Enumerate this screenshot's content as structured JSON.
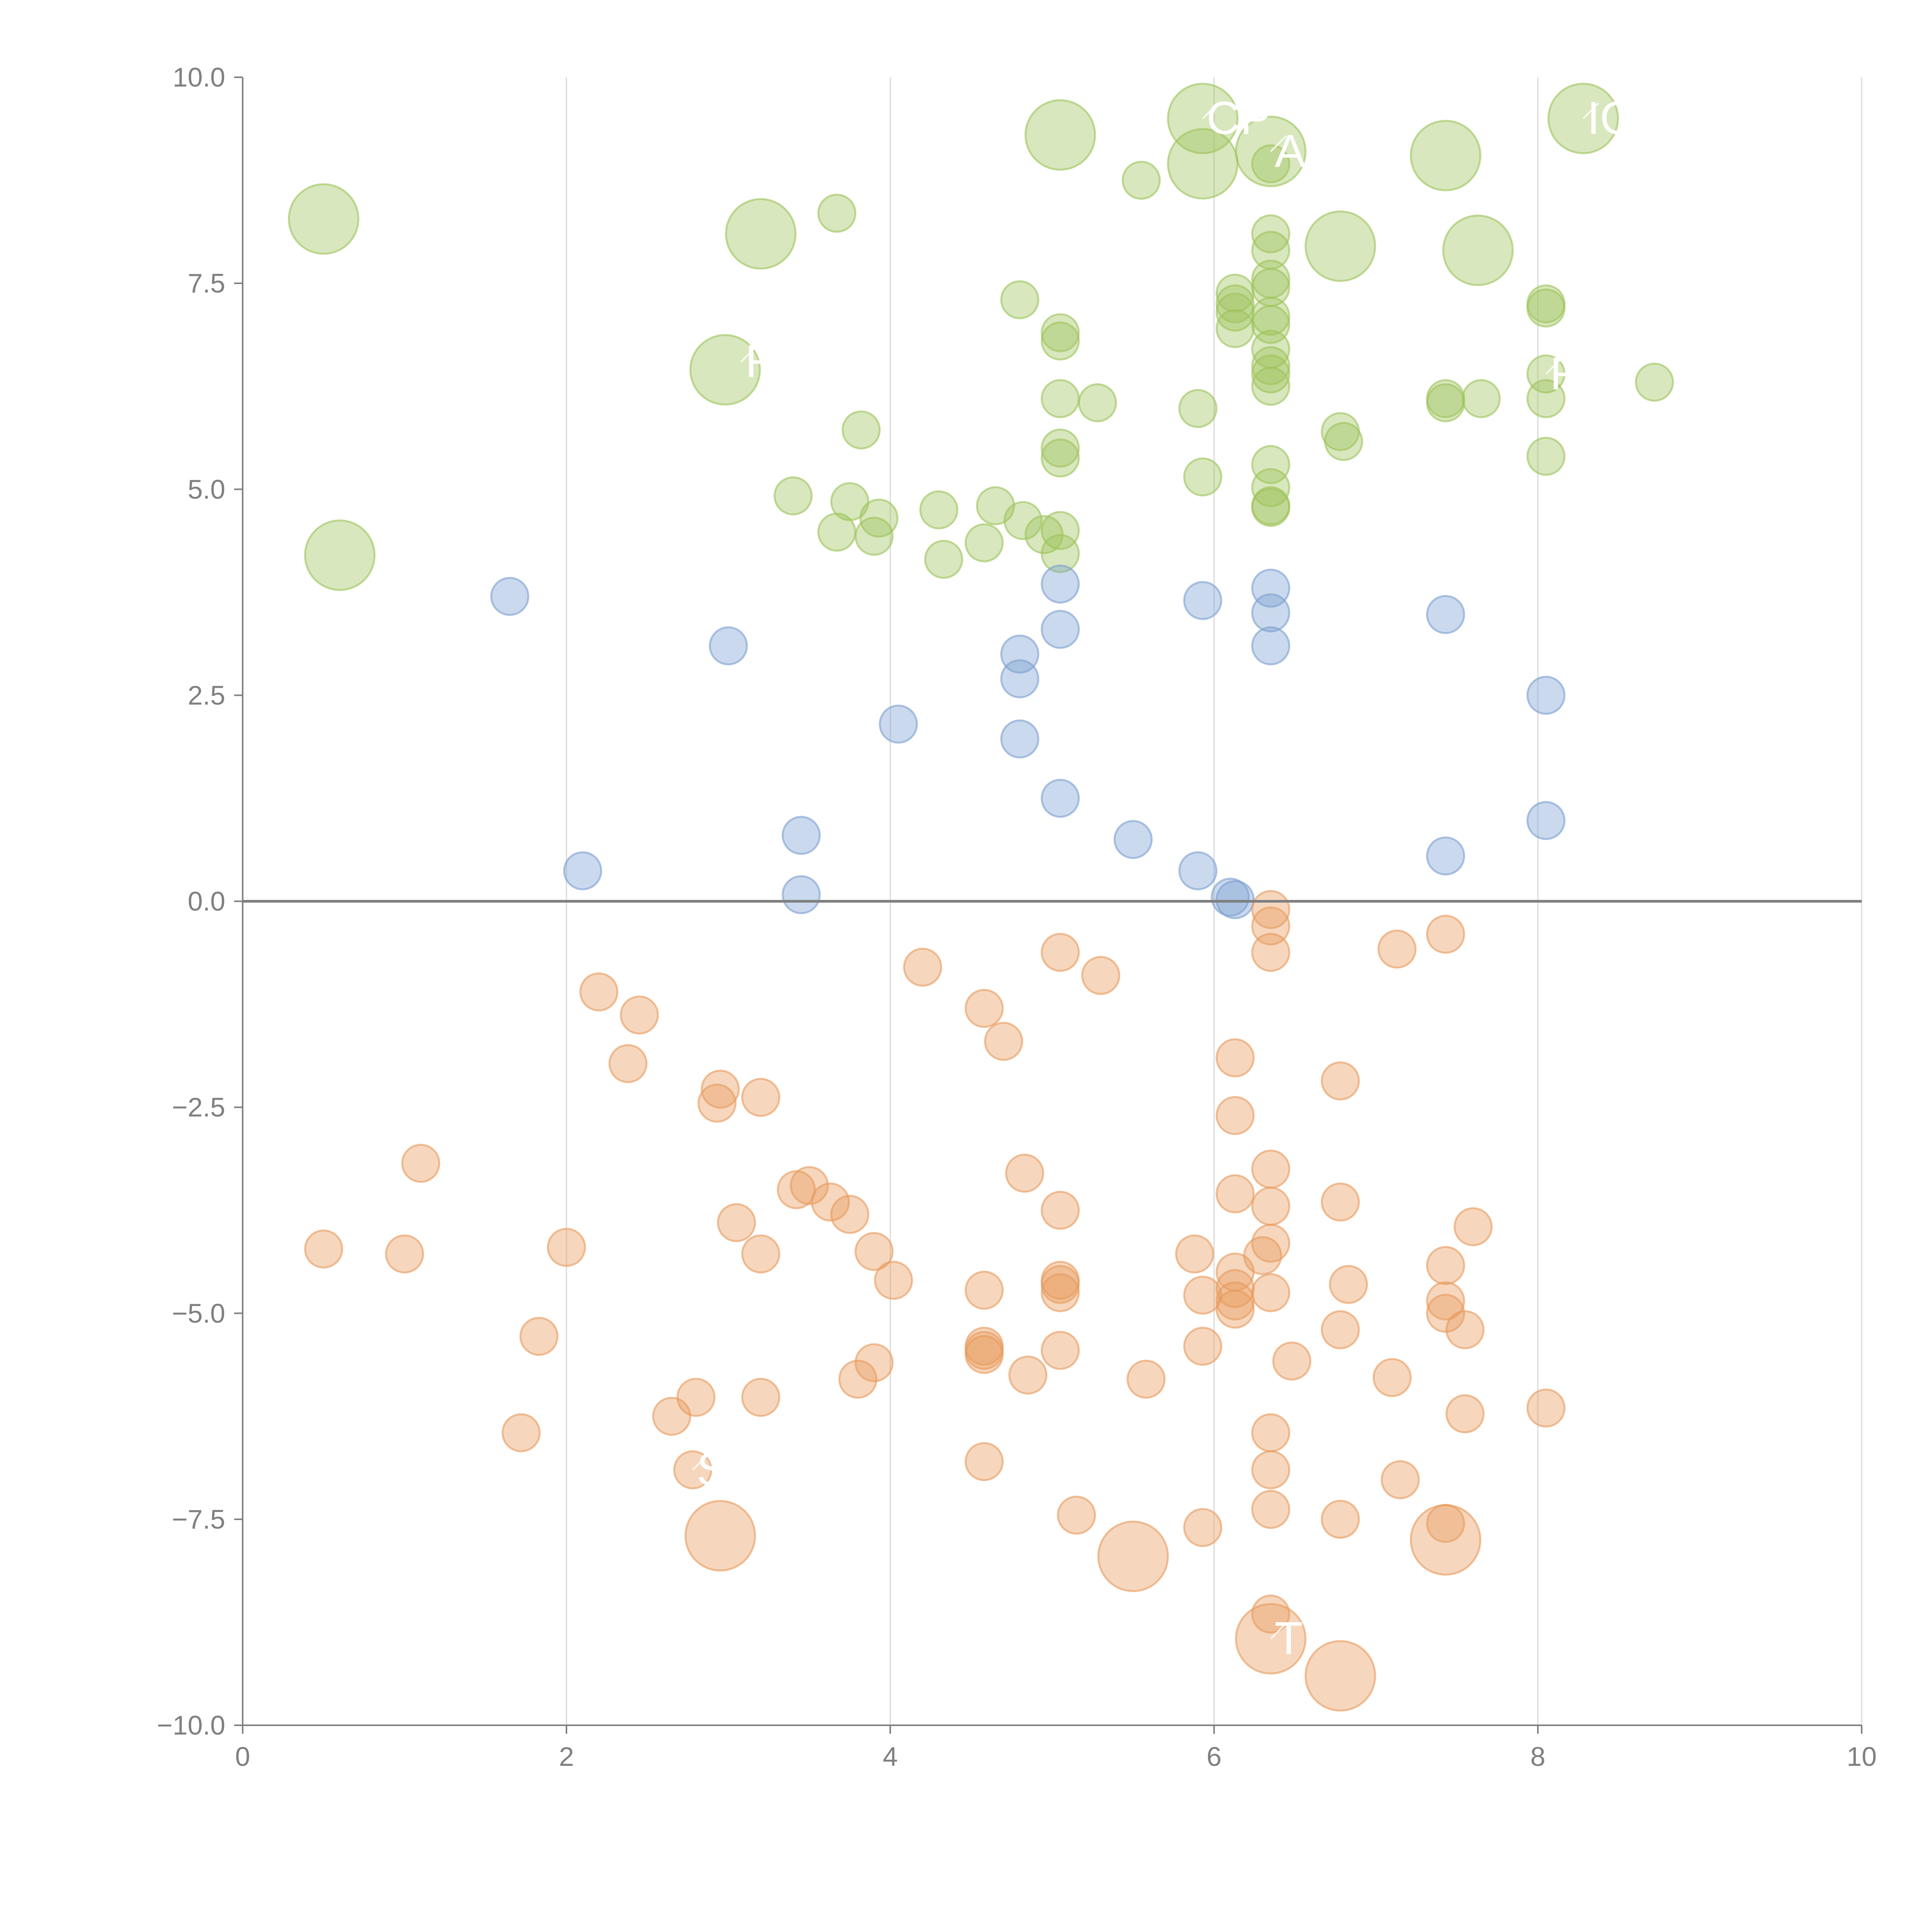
{
  "chart_data": {
    "type": "scatter",
    "title": "",
    "xlabel": "",
    "ylabel": "",
    "xlim": [
      0,
      10
    ],
    "ylim": [
      -10,
      10
    ],
    "x_ticks": [
      0,
      2,
      4,
      6,
      8,
      10
    ],
    "x_tick_labels": [
      "0",
      "2",
      "4",
      "6",
      "8",
      "10"
    ],
    "y_ticks": [
      10,
      7.5,
      5,
      2.5,
      0,
      -2.5,
      -5,
      -7.5,
      -10
    ],
    "y_tick_labels": [
      "10.0",
      "7.5",
      "5.0",
      "2.5",
      "0.0",
      "−2.5",
      "−5.0",
      "−7.5",
      "−10.0"
    ],
    "grid": "vertical",
    "zero_line": true,
    "legend": "none",
    "size_unit": "relative",
    "series": [
      {
        "name": "green",
        "color": "#9dc35a",
        "points": [
          [
            5.05,
            9.3,
            3
          ],
          [
            5.93,
            9.5,
            3
          ],
          [
            5.93,
            8.95,
            3
          ],
          [
            6.35,
            9.1,
            3
          ],
          [
            7.43,
            9.05,
            3
          ],
          [
            8.28,
            9.5,
            3
          ],
          [
            0.5,
            8.28,
            3
          ],
          [
            3.2,
            8.1,
            3
          ],
          [
            6.78,
            7.95,
            3
          ],
          [
            7.63,
            7.9,
            3
          ],
          [
            2.98,
            6.45,
            3
          ],
          [
            0.6,
            4.2,
            3
          ],
          [
            5.55,
            8.75,
            1
          ],
          [
            3.67,
            8.35,
            1
          ],
          [
            6.35,
            8.95,
            1
          ],
          [
            6.35,
            8.1,
            1
          ],
          [
            6.35,
            7.9,
            1
          ],
          [
            4.8,
            7.3,
            1
          ],
          [
            6.13,
            7.38,
            1
          ],
          [
            6.13,
            7.25,
            1
          ],
          [
            6.13,
            7.15,
            1
          ],
          [
            6.13,
            6.95,
            1
          ],
          [
            6.35,
            7.55,
            1
          ],
          [
            6.35,
            7.45,
            1
          ],
          [
            6.35,
            7.1,
            1
          ],
          [
            6.35,
            7.0,
            1
          ],
          [
            6.35,
            6.7,
            1
          ],
          [
            6.35,
            6.5,
            1
          ],
          [
            6.35,
            6.4,
            1
          ],
          [
            6.35,
            6.25,
            1
          ],
          [
            5.05,
            6.9,
            1
          ],
          [
            5.05,
            6.8,
            1
          ],
          [
            8.05,
            7.25,
            1
          ],
          [
            8.05,
            7.2,
            1
          ],
          [
            8.05,
            6.4,
            1
          ],
          [
            8.05,
            6.1,
            1
          ],
          [
            8.72,
            6.3,
            1
          ],
          [
            7.43,
            6.1,
            1
          ],
          [
            7.43,
            6.05,
            1
          ],
          [
            7.65,
            6.1,
            1
          ],
          [
            5.05,
            6.1,
            1
          ],
          [
            5.28,
            6.05,
            1
          ],
          [
            5.9,
            5.98,
            1
          ],
          [
            3.82,
            5.72,
            1
          ],
          [
            6.78,
            5.7,
            1
          ],
          [
            6.8,
            5.58,
            1
          ],
          [
            5.05,
            5.5,
            1
          ],
          [
            5.05,
            5.38,
            1
          ],
          [
            8.05,
            5.4,
            1
          ],
          [
            6.35,
            5.3,
            1
          ],
          [
            5.93,
            5.15,
            1
          ],
          [
            6.35,
            5.02,
            1
          ],
          [
            6.35,
            4.8,
            1
          ],
          [
            6.35,
            4.78,
            1
          ],
          [
            3.4,
            4.92,
            1
          ],
          [
            3.75,
            4.85,
            1
          ],
          [
            3.93,
            4.65,
            1
          ],
          [
            4.3,
            4.75,
            1
          ],
          [
            4.65,
            4.8,
            1
          ],
          [
            4.82,
            4.62,
            1
          ],
          [
            4.95,
            4.45,
            1
          ],
          [
            5.05,
            4.5,
            1
          ],
          [
            5.05,
            4.22,
            1
          ],
          [
            3.67,
            4.48,
            1
          ],
          [
            3.9,
            4.43,
            1
          ],
          [
            4.33,
            4.15,
            1
          ],
          [
            4.58,
            4.35,
            1
          ]
        ]
      },
      {
        "name": "blue",
        "color": "#7b9fd1",
        "points": [
          [
            1.65,
            3.7,
            1
          ],
          [
            3.0,
            3.1,
            1
          ],
          [
            5.05,
            3.85,
            1
          ],
          [
            5.05,
            3.3,
            1
          ],
          [
            4.8,
            3.0,
            1
          ],
          [
            4.8,
            2.7,
            1
          ],
          [
            4.8,
            1.97,
            1
          ],
          [
            4.05,
            2.15,
            1
          ],
          [
            5.93,
            3.65,
            1
          ],
          [
            6.35,
            3.8,
            1
          ],
          [
            6.35,
            3.5,
            1
          ],
          [
            6.35,
            3.1,
            1
          ],
          [
            7.43,
            3.48,
            1
          ],
          [
            8.05,
            2.5,
            1
          ],
          [
            8.05,
            0.98,
            1
          ],
          [
            7.43,
            0.55,
            1
          ],
          [
            5.05,
            1.25,
            1
          ],
          [
            5.5,
            0.75,
            1
          ],
          [
            5.9,
            0.37,
            1
          ],
          [
            6.1,
            0.05,
            1
          ],
          [
            6.13,
            0.02,
            1
          ],
          [
            3.45,
            0.8,
            1
          ],
          [
            3.45,
            0.08,
            1
          ],
          [
            2.1,
            0.37,
            1
          ]
        ]
      },
      {
        "name": "orange",
        "color": "#e89a5c",
        "points": [
          [
            2.95,
            -7.7,
            3
          ],
          [
            5.5,
            -7.95,
            3
          ],
          [
            6.35,
            -8.95,
            3
          ],
          [
            6.78,
            -9.4,
            3
          ],
          [
            7.43,
            -7.75,
            3
          ],
          [
            6.35,
            -0.1,
            1
          ],
          [
            6.35,
            -0.3,
            1
          ],
          [
            6.35,
            -0.62,
            1
          ],
          [
            7.43,
            -0.4,
            1
          ],
          [
            7.13,
            -0.58,
            1
          ],
          [
            5.05,
            -0.62,
            1
          ],
          [
            5.3,
            -0.9,
            1
          ],
          [
            4.2,
            -0.8,
            1
          ],
          [
            4.58,
            -1.3,
            1
          ],
          [
            4.7,
            -1.7,
            1
          ],
          [
            2.2,
            -1.1,
            1
          ],
          [
            2.45,
            -1.38,
            1
          ],
          [
            2.38,
            -1.97,
            1
          ],
          [
            2.95,
            -2.28,
            1
          ],
          [
            2.93,
            -2.45,
            1
          ],
          [
            3.2,
            -2.38,
            1
          ],
          [
            1.1,
            -3.18,
            1
          ],
          [
            6.13,
            -1.9,
            1
          ],
          [
            6.13,
            -2.6,
            1
          ],
          [
            6.78,
            -2.18,
            1
          ],
          [
            6.35,
            -3.25,
            1
          ],
          [
            6.13,
            -3.55,
            1
          ],
          [
            6.35,
            -3.7,
            1
          ],
          [
            6.78,
            -3.65,
            1
          ],
          [
            6.35,
            -4.15,
            1
          ],
          [
            6.3,
            -4.3,
            1
          ],
          [
            6.13,
            -4.5,
            1
          ],
          [
            6.13,
            -4.7,
            1
          ],
          [
            6.13,
            -4.85,
            1
          ],
          [
            6.13,
            -4.95,
            1
          ],
          [
            6.35,
            -4.75,
            1
          ],
          [
            5.88,
            -4.28,
            1
          ],
          [
            5.93,
            -4.78,
            1
          ],
          [
            5.93,
            -5.4,
            1
          ],
          [
            6.83,
            -4.65,
            1
          ],
          [
            6.78,
            -5.2,
            1
          ],
          [
            6.48,
            -5.58,
            1
          ],
          [
            7.6,
            -3.95,
            1
          ],
          [
            7.43,
            -4.42,
            1
          ],
          [
            7.43,
            -4.85,
            1
          ],
          [
            7.43,
            -5.0,
            1
          ],
          [
            7.55,
            -5.2,
            1
          ],
          [
            7.1,
            -5.78,
            1
          ],
          [
            7.55,
            -6.22,
            1
          ],
          [
            8.05,
            -6.15,
            1
          ],
          [
            7.15,
            -7.02,
            1
          ],
          [
            7.43,
            -7.55,
            1
          ],
          [
            6.35,
            -6.45,
            1
          ],
          [
            6.35,
            -6.9,
            1
          ],
          [
            6.35,
            -7.38,
            1
          ],
          [
            6.78,
            -7.5,
            1
          ],
          [
            6.35,
            -8.65,
            1
          ],
          [
            5.93,
            -7.6,
            1
          ],
          [
            5.58,
            -5.8,
            1
          ],
          [
            5.15,
            -7.45,
            1
          ],
          [
            5.05,
            -3.75,
            1
          ],
          [
            5.05,
            -4.6,
            1
          ],
          [
            5.05,
            -4.65,
            1
          ],
          [
            5.05,
            -4.75,
            1
          ],
          [
            5.05,
            -5.45,
            1
          ],
          [
            4.83,
            -3.3,
            1
          ],
          [
            4.85,
            -5.75,
            1
          ],
          [
            4.58,
            -4.72,
            1
          ],
          [
            4.58,
            -5.4,
            1
          ],
          [
            4.58,
            -5.45,
            1
          ],
          [
            4.58,
            -5.5,
            1
          ],
          [
            4.58,
            -6.8,
            1
          ],
          [
            3.42,
            -3.5,
            1
          ],
          [
            3.5,
            -3.45,
            1
          ],
          [
            3.63,
            -3.65,
            1
          ],
          [
            3.75,
            -3.8,
            1
          ],
          [
            3.05,
            -3.9,
            1
          ],
          [
            3.2,
            -4.28,
            1
          ],
          [
            3.9,
            -4.25,
            1
          ],
          [
            4.02,
            -4.6,
            1
          ],
          [
            3.9,
            -5.6,
            1
          ],
          [
            3.8,
            -5.8,
            1
          ],
          [
            3.2,
            -6.02,
            1
          ],
          [
            2.8,
            -6.02,
            1
          ],
          [
            2.65,
            -6.25,
            1
          ],
          [
            2.78,
            -6.9,
            1
          ],
          [
            2.0,
            -4.2,
            1
          ],
          [
            1.83,
            -5.28,
            1
          ],
          [
            1.72,
            -6.45,
            1
          ],
          [
            1.0,
            -4.28,
            1
          ],
          [
            0.5,
            -4.22,
            1
          ]
        ]
      }
    ],
    "callouts": [
      {
        "text": "CP",
        "x": 5.93,
        "y": 9.5
      },
      {
        "text": "A",
        "x": 6.35,
        "y": 9.1
      },
      {
        "text": "IO",
        "x": 8.28,
        "y": 9.5
      },
      {
        "text": "R",
        "x": 8.05,
        "y": 6.4
      },
      {
        "text": "R",
        "x": 3.08,
        "y": 6.55
      },
      {
        "text": "S",
        "x": 2.78,
        "y": -6.9
      },
      {
        "text": "T",
        "x": 6.35,
        "y": -8.95
      }
    ]
  }
}
